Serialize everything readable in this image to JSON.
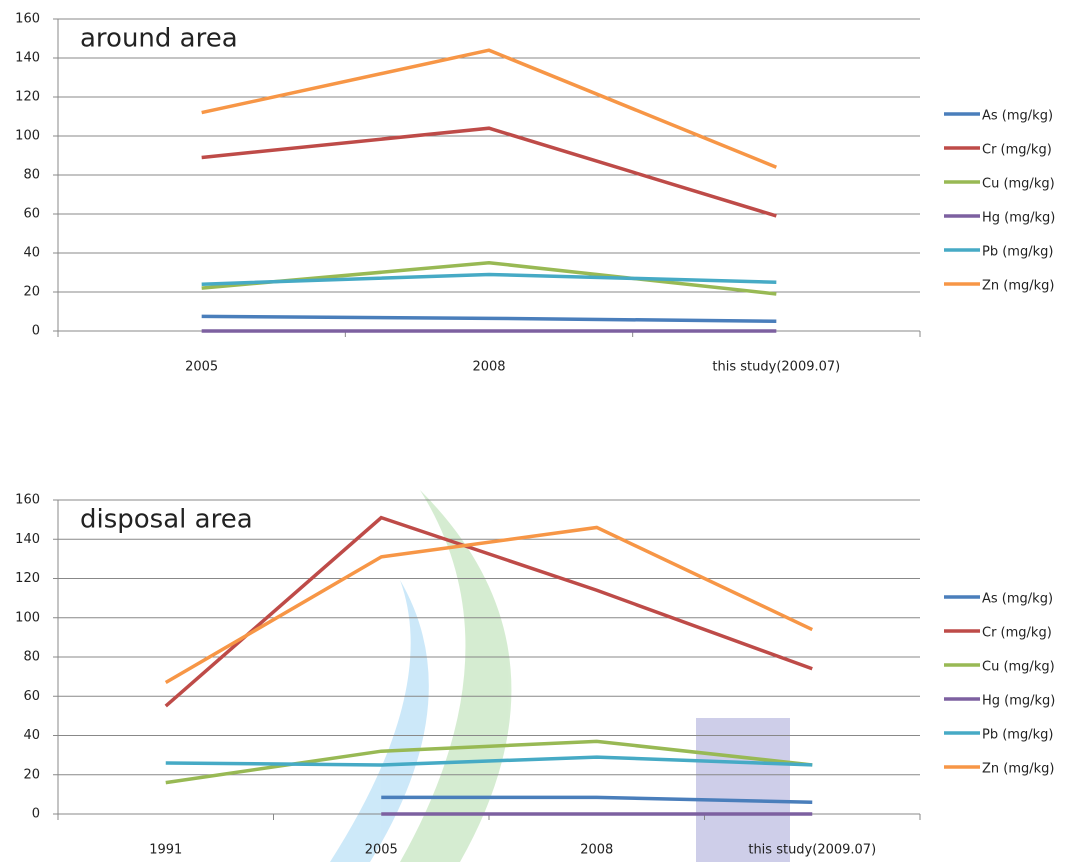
{
  "chart_data": [
    {
      "type": "line",
      "title": "around area",
      "categories": [
        "2005",
        "2008",
        "this study(2009.07)"
      ],
      "ylim": [
        0,
        160
      ],
      "yticks": [
        0,
        20,
        40,
        60,
        80,
        100,
        120,
        140,
        160
      ],
      "grid": true,
      "legend": "right",
      "series": [
        {
          "name": "As (mg/kg)",
          "color": "#4a7ebb",
          "values": [
            7.5,
            6.5,
            5
          ]
        },
        {
          "name": "Cr (mg/kg)",
          "color": "#be4b48",
          "values": [
            89,
            104,
            59
          ]
        },
        {
          "name": "Cu (mg/kg)",
          "color": "#98b954",
          "values": [
            22,
            35,
            19
          ]
        },
        {
          "name": "Hg (mg/kg)",
          "color": "#7d60a0",
          "values": [
            0,
            0,
            0
          ]
        },
        {
          "name": "Pb (mg/kg)",
          "color": "#46aac5",
          "values": [
            24,
            29,
            25
          ]
        },
        {
          "name": "Zn (mg/kg)",
          "color": "#f79646",
          "values": [
            112,
            144,
            84
          ]
        }
      ]
    },
    {
      "type": "line",
      "title": "disposal area",
      "categories": [
        "1991",
        "2005",
        "2008",
        "this study(2009.07)"
      ],
      "ylim": [
        0,
        160
      ],
      "yticks": [
        0,
        20,
        40,
        60,
        80,
        100,
        120,
        140,
        160
      ],
      "grid": true,
      "legend": "right",
      "series": [
        {
          "name": "As (mg/kg)",
          "color": "#4a7ebb",
          "values": [
            null,
            8.5,
            8.5,
            6
          ]
        },
        {
          "name": "Cr (mg/kg)",
          "color": "#be4b48",
          "values": [
            55,
            151,
            114,
            74
          ]
        },
        {
          "name": "Cu (mg/kg)",
          "color": "#98b954",
          "values": [
            16,
            32,
            37,
            25
          ]
        },
        {
          "name": "Hg (mg/kg)",
          "color": "#7d60a0",
          "values": [
            null,
            0,
            0,
            0
          ]
        },
        {
          "name": "Pb (mg/kg)",
          "color": "#46aac5",
          "values": [
            26,
            25,
            29,
            25
          ]
        },
        {
          "name": "Zn (mg/kg)",
          "color": "#f79646",
          "values": [
            67,
            131,
            146,
            94
          ]
        }
      ]
    }
  ]
}
